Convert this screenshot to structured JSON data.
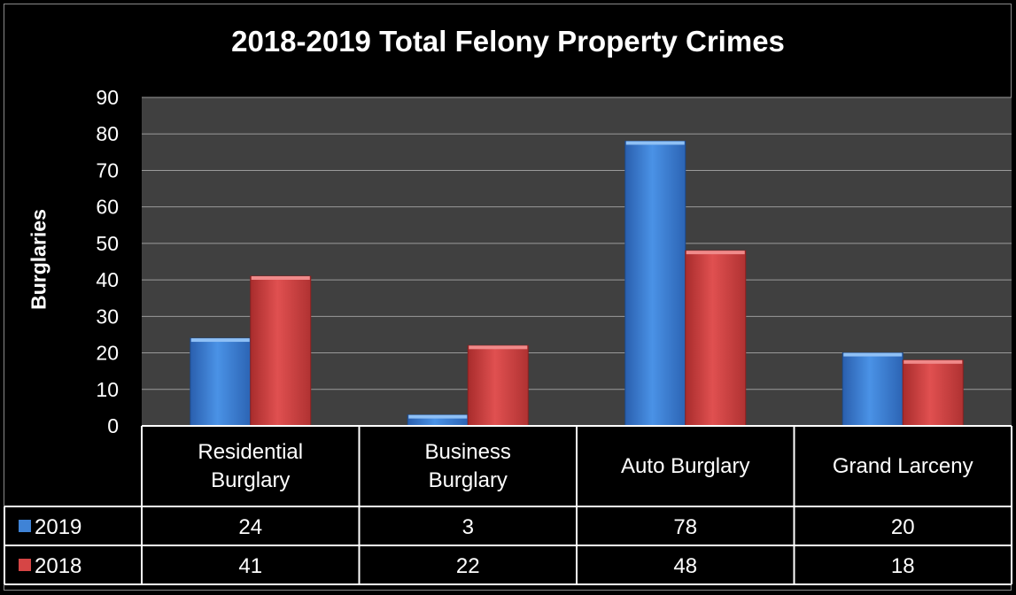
{
  "chart_data": {
    "type": "bar",
    "title": "2018-2019 Total Felony Property Crimes",
    "ylabel": "Burglaries",
    "xlabel": "",
    "ylim": [
      0,
      90
    ],
    "yticks": [
      "0",
      "10",
      "20",
      "30",
      "40",
      "50",
      "60",
      "70",
      "80",
      "90"
    ],
    "grid": true,
    "legend": "data-table",
    "categories": [
      [
        "Residential",
        "Burglary"
      ],
      [
        "Business",
        "Burglary"
      ],
      [
        "Auto Burglary"
      ],
      [
        "Grand Larceny"
      ]
    ],
    "series": [
      {
        "name": "2019",
        "color": "#3f83d6",
        "values": [
          24,
          3,
          78,
          20
        ]
      },
      {
        "name": "2018",
        "color": "#d64545",
        "values": [
          41,
          22,
          48,
          18
        ]
      }
    ]
  }
}
